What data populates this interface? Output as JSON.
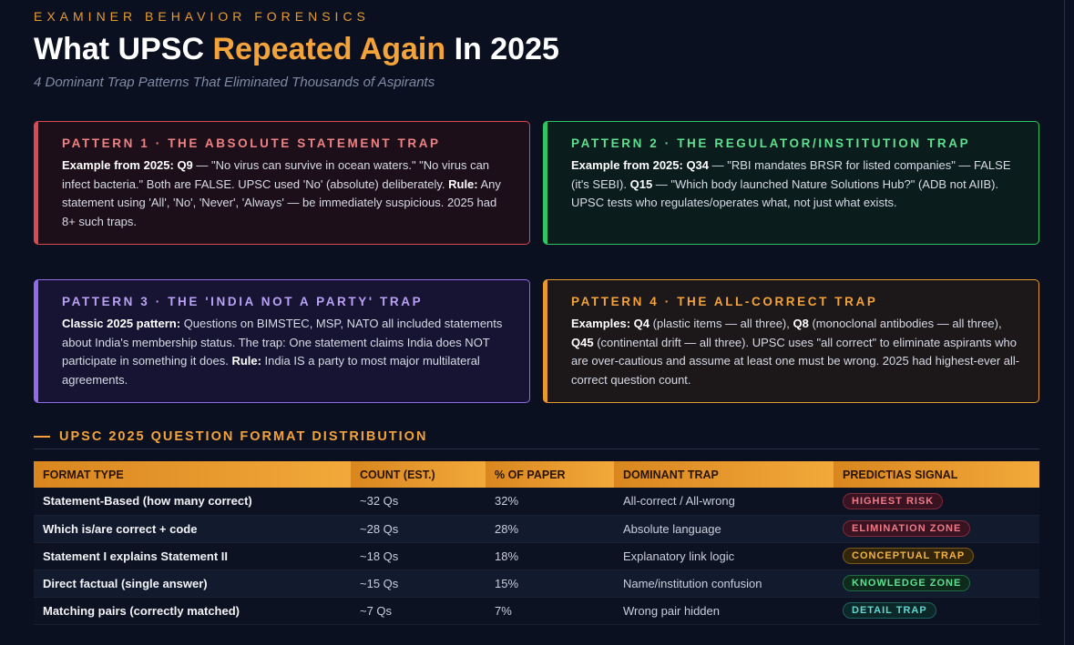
{
  "header": {
    "eyebrow": "EXAMINER BEHAVIOR FORENSICS",
    "title_pre": "What UPSC ",
    "title_accent": "Repeated Again",
    "title_post": " In 2025",
    "subtitle": "4 Dominant Trap Patterns That Eliminated Thousands of Aspirants"
  },
  "patterns": [
    {
      "heading": "PATTERN 1 · THE ABSOLUTE STATEMENT TRAP",
      "color": "#d84a4f",
      "b1": "Example from 2025: Q9",
      "t1": " — \"No virus can survive in ocean waters.\" \"No virus can infect bacteria.\" Both are FALSE. UPSC used 'No' (absolute) deliberately. ",
      "b2": "Rule:",
      "t2": " Any statement using 'All', 'No', 'Never', 'Always' — be immediately suspicious. 2025 had 8+ such traps."
    },
    {
      "heading": "PATTERN 2 · THE REGULATOR/INSTITUTION TRAP",
      "color": "#2fc565",
      "b1": "Example from 2025: Q34",
      "t1": " — \"RBI mandates BRSR for listed companies\" — FALSE (it's SEBI). ",
      "b2": "Q15",
      "t2": " — \"Which body launched Nature Solutions Hub?\" (ADB not AIIB). UPSC tests who regulates/operates what, not just what exists."
    },
    {
      "heading": "PATTERN 3 · THE 'INDIA NOT A PARTY' TRAP",
      "color": "#8f6be8",
      "b1": "Classic 2025 pattern:",
      "t1": " Questions on BIMSTEC, MSP, NATO all included statements about India's membership status. The trap: One statement claims India does NOT participate in something it does. ",
      "b2": "Rule:",
      "t2": " India IS a party to most major multilateral agreements."
    },
    {
      "heading": "PATTERN 4 · THE ALL-CORRECT TRAP",
      "color": "#e69a2e",
      "b1": "Examples: Q4",
      "t1": " (plastic items — all three), ",
      "b2": "Q8",
      "t2": " (monoclonal antibodies — all three), ",
      "b3": "Q45",
      "t3": " (continental drift — all three). UPSC uses \"all correct\" to eliminate aspirants who are over-cautious and assume at least one must be wrong. 2025 had highest-ever all-correct question count."
    }
  ],
  "section_title": "UPSC 2025 QUESTION FORMAT DISTRIBUTION",
  "table": {
    "headers": [
      "FORMAT TYPE",
      "COUNT (EST.)",
      "% OF PAPER",
      "DOMINANT TRAP",
      "PREDICTIAS SIGNAL"
    ],
    "rows": [
      [
        "Statement-Based (how many correct)",
        "~32 Qs",
        "32%",
        "All-correct / All-wrong",
        "HIGHEST RISK"
      ],
      [
        "Which is/are correct + code",
        "~28 Qs",
        "28%",
        "Absolute language",
        "ELIMINATION ZONE"
      ],
      [
        "Statement I explains Statement II",
        "~18 Qs",
        "18%",
        "Explanatory link logic",
        "CONCEPTUAL TRAP"
      ],
      [
        "Direct factual (single answer)",
        "~15 Qs",
        "15%",
        "Name/institution confusion",
        "KNOWLEDGE ZONE"
      ],
      [
        "Matching pairs (correctly matched)",
        "~7 Qs",
        "7%",
        "Wrong pair hidden",
        "DETAIL TRAP"
      ]
    ]
  },
  "colors": {
    "accent": "#f3a33a",
    "background": "#0b1020"
  }
}
